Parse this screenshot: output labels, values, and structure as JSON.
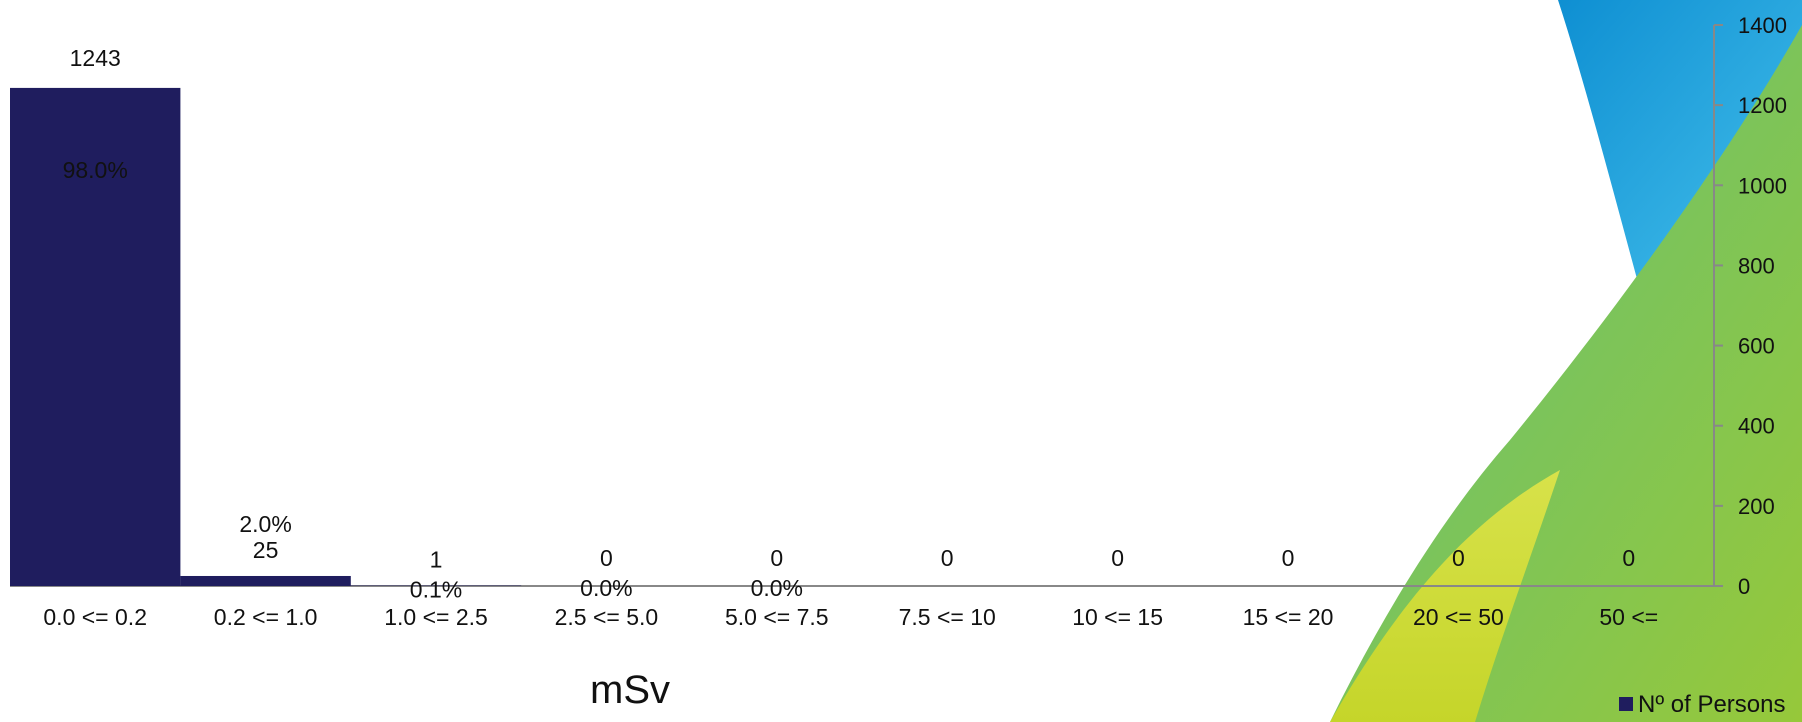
{
  "chart_data": {
    "type": "bar",
    "categories": [
      "0.0 <= 0.2",
      "0.2 <= 1.0",
      "1.0 <= 2.5",
      "2.5 <= 5.0",
      "5.0 <= 7.5",
      "7.5 <= 10",
      "10 <= 15",
      "15 <= 20",
      "20 <= 50",
      "50 <="
    ],
    "series": [
      {
        "name": "Nº of Persons",
        "values": [
          1243,
          25,
          1,
          0,
          0,
          0,
          0,
          0,
          0,
          0
        ],
        "percent_labels": [
          "98.0%",
          "2.0%",
          "0.1%",
          "0.0%",
          "0.0%",
          "",
          "",
          "",
          "",
          ""
        ],
        "color": "#1f1d5e"
      }
    ],
    "xlabel": "mSv",
    "ylabel": "",
    "ylim": [
      0,
      1400
    ],
    "yticks": [
      0,
      200,
      400,
      600,
      800,
      1000,
      1200,
      1400
    ],
    "y_axis_side": "right",
    "legend": "bottom-right",
    "grid": false
  },
  "colors": {
    "bar": "#1f1d5e",
    "axis": "#888888",
    "background_blue": "#1aa0d8",
    "background_green": "#7fc24a",
    "background_lime": "#c8d82a"
  }
}
